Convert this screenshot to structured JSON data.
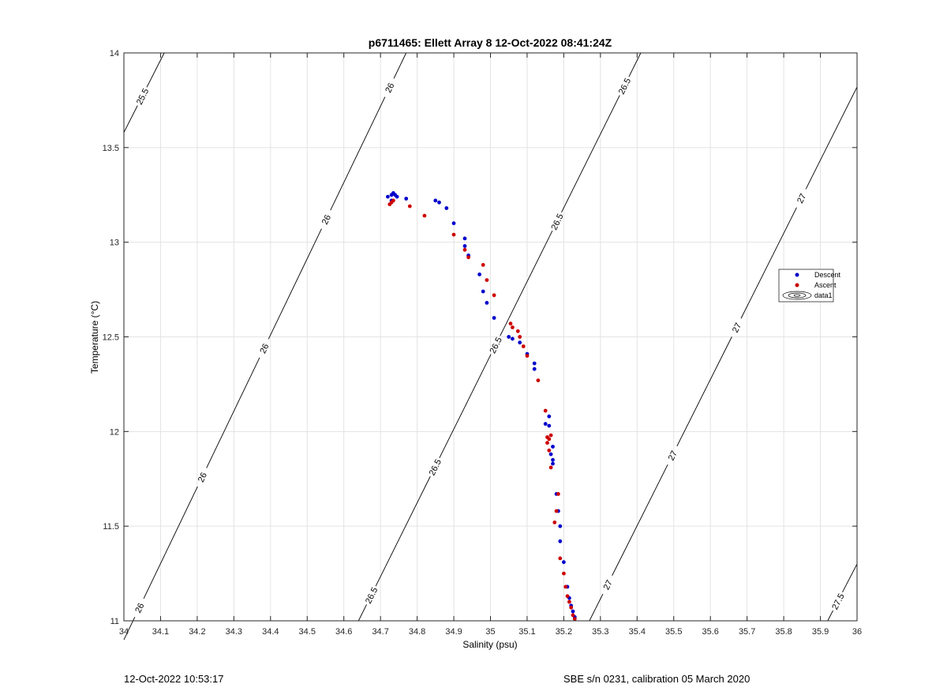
{
  "chart_data": {
    "type": "scatter",
    "title": "p6711465: Ellett Array 8 12-Oct-2022 08:41:24Z",
    "xlabel": "Salinity (psu)",
    "ylabel": "Temperature (°C)",
    "xlim": [
      34,
      36
    ],
    "ylim": [
      11,
      14
    ],
    "xticks": [
      "34",
      "34.1",
      "34.2",
      "34.3",
      "34.4",
      "34.5",
      "34.6",
      "34.7",
      "34.8",
      "34.9",
      "35",
      "35.1",
      "35.2",
      "35.3",
      "35.4",
      "35.5",
      "35.6",
      "35.7",
      "35.8",
      "35.9",
      "36"
    ],
    "yticks": [
      "11",
      "11.5",
      "12",
      "12.5",
      "13",
      "13.5",
      "14"
    ],
    "grid": true,
    "legend_position": "right",
    "legend": [
      {
        "label": "Descent",
        "color": "#0000cc",
        "kind": "marker"
      },
      {
        "label": "Ascent",
        "color": "#cc0000",
        "kind": "marker"
      },
      {
        "label": "data1",
        "color": "#000000",
        "kind": "contour"
      }
    ],
    "contours": [
      {
        "level": "25.5",
        "points": [
          [
            34.0,
            13.58
          ],
          [
            34.11,
            14.0
          ]
        ],
        "labels": [
          [
            34.04,
            13.78
          ]
        ]
      },
      {
        "level": "26",
        "points": [
          [
            34.0,
            10.9
          ],
          [
            34.77,
            14.0
          ]
        ],
        "labels": [
          [
            34.03,
            11.08
          ],
          [
            34.19,
            11.78
          ],
          [
            34.36,
            12.46
          ],
          [
            34.53,
            13.14
          ],
          [
            34.71,
            13.83
          ]
        ]
      },
      {
        "level": "26.5",
        "points": [
          [
            34.64,
            11.0
          ],
          [
            35.41,
            14.0
          ]
        ],
        "labels": [
          [
            34.69,
            11.12
          ],
          [
            34.85,
            11.81
          ],
          [
            35.01,
            12.46
          ],
          [
            35.18,
            13.11
          ],
          [
            35.36,
            13.83
          ]
        ]
      },
      {
        "level": "27",
        "points": [
          [
            35.27,
            11.0
          ],
          [
            36.0,
            13.82
          ]
        ],
        "labels": [
          [
            35.33,
            11.18
          ],
          [
            35.5,
            11.87
          ],
          [
            35.67,
            12.55
          ],
          [
            35.85,
            13.23
          ]
        ]
      },
      {
        "level": "27.5",
        "points": [
          [
            35.92,
            11.0
          ],
          [
            36.0,
            11.3
          ]
        ],
        "labels": [
          [
            35.95,
            11.1
          ]
        ]
      }
    ],
    "series": [
      {
        "name": "Descent",
        "color": "#0000cc",
        "x": [
          34.72,
          34.73,
          34.735,
          34.74,
          34.745,
          34.73,
          34.77,
          34.85,
          34.86,
          34.88,
          34.9,
          34.93,
          34.93,
          34.94,
          34.97,
          34.98,
          34.99,
          35.01,
          35.05,
          35.06,
          35.08,
          35.1,
          35.12,
          35.12,
          35.16,
          35.15,
          35.16,
          35.17,
          35.165,
          35.17,
          35.17,
          35.18,
          35.185,
          35.19,
          35.19,
          35.2,
          35.21,
          35.215,
          35.22,
          35.225,
          35.23
        ],
        "y": [
          13.24,
          13.25,
          13.26,
          13.25,
          13.24,
          13.22,
          13.23,
          13.22,
          13.21,
          13.18,
          13.1,
          13.02,
          12.98,
          12.93,
          12.83,
          12.74,
          12.68,
          12.6,
          12.5,
          12.49,
          12.47,
          12.41,
          12.36,
          12.33,
          12.08,
          12.04,
          12.03,
          11.92,
          11.88,
          11.85,
          11.83,
          11.67,
          11.58,
          11.5,
          11.42,
          11.31,
          11.18,
          11.12,
          11.08,
          11.05,
          11.02
        ]
      },
      {
        "name": "Ascent",
        "color": "#cc0000",
        "x": [
          34.725,
          34.73,
          34.735,
          34.78,
          34.82,
          34.9,
          34.93,
          34.94,
          34.98,
          34.99,
          35.01,
          35.055,
          35.06,
          35.075,
          35.08,
          35.09,
          35.1,
          35.13,
          35.15,
          35.155,
          35.16,
          35.165,
          35.155,
          35.16,
          35.165,
          35.185,
          35.18,
          35.175,
          35.19,
          35.2,
          35.205,
          35.21,
          35.215,
          35.22,
          35.225,
          35.23
        ],
        "y": [
          13.2,
          13.21,
          13.22,
          13.19,
          13.14,
          13.04,
          12.96,
          12.92,
          12.88,
          12.8,
          12.72,
          12.57,
          12.55,
          12.53,
          12.5,
          12.45,
          12.4,
          12.27,
          12.11,
          11.97,
          11.96,
          11.98,
          11.94,
          11.9,
          11.81,
          11.67,
          11.58,
          11.52,
          11.33,
          11.25,
          11.18,
          11.13,
          11.1,
          11.07,
          11.03,
          11.01
        ]
      }
    ]
  },
  "footer": {
    "left": "12-Oct-2022 10:53:17",
    "right": "SBE s/n 0231, calibration 05 March 2020"
  }
}
